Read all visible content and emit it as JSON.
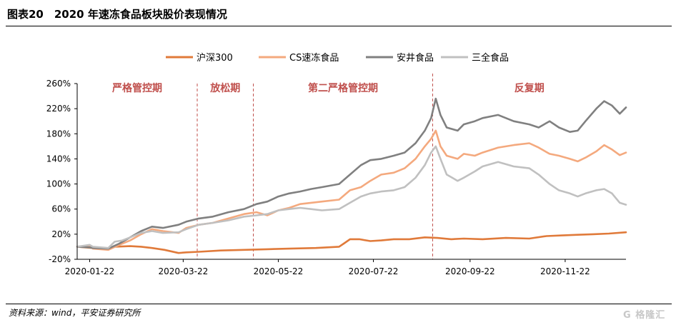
{
  "title": "图表20　2020 年速冻食品板块股价表现情况",
  "source": "资料来源：wind，平安证券研究所",
  "watermark": "G 格隆汇",
  "chart_data": {
    "type": "line",
    "ylim": [
      -20,
      260
    ],
    "yticks": [
      "-20%",
      "20%",
      "60%",
      "100%",
      "140%",
      "180%",
      "220%",
      "260%"
    ],
    "ytick_values": [
      -20,
      20,
      60,
      100,
      140,
      180,
      220,
      260
    ],
    "x_start": "2020-01-14",
    "x_end": "2020-12-31",
    "xticks": [
      "2020-01-22",
      "2020-03-22",
      "2020-05-22",
      "2020-07-22",
      "2020-09-22",
      "2020-11-22"
    ],
    "legend_position": "top",
    "grid": false,
    "phases": [
      {
        "label": "严格管控期",
        "start": "2020-01-14",
        "end": "2020-03-31"
      },
      {
        "label": "放松期",
        "start": "2020-03-31",
        "end": "2020-05-06"
      },
      {
        "label": "第二严格管控期",
        "start": "2020-05-06",
        "end": "2020-08-29"
      },
      {
        "label": "反复期",
        "start": "2020-08-29",
        "end": "2020-12-31"
      }
    ],
    "phase_color": "#c0504d",
    "series": [
      {
        "name": "沪深300",
        "color": "#e07a3a",
        "width": 2.6,
        "points": [
          [
            "2020-01-14",
            0
          ],
          [
            "2020-01-24",
            -2
          ],
          [
            "2020-02-03",
            -4
          ],
          [
            "2020-02-07",
            0
          ],
          [
            "2020-02-17",
            1
          ],
          [
            "2020-02-24",
            0
          ],
          [
            "2020-03-02",
            -2
          ],
          [
            "2020-03-10",
            -5
          ],
          [
            "2020-03-19",
            -10
          ],
          [
            "2020-03-24",
            -9
          ],
          [
            "2020-04-01",
            -8
          ],
          [
            "2020-04-15",
            -6
          ],
          [
            "2020-04-30",
            -5
          ],
          [
            "2020-05-15",
            -4
          ],
          [
            "2020-05-29",
            -3
          ],
          [
            "2020-06-15",
            -2
          ],
          [
            "2020-06-30",
            0
          ],
          [
            "2020-07-03",
            5
          ],
          [
            "2020-07-07",
            12
          ],
          [
            "2020-07-13",
            12
          ],
          [
            "2020-07-20",
            9
          ],
          [
            "2020-07-27",
            10
          ],
          [
            "2020-08-04",
            12
          ],
          [
            "2020-08-14",
            12
          ],
          [
            "2020-08-24",
            15
          ],
          [
            "2020-09-01",
            14
          ],
          [
            "2020-09-10",
            12
          ],
          [
            "2020-09-18",
            13
          ],
          [
            "2020-09-30",
            12
          ],
          [
            "2020-10-15",
            14
          ],
          [
            "2020-10-30",
            13
          ],
          [
            "2020-11-10",
            17
          ],
          [
            "2020-11-20",
            18
          ],
          [
            "2020-11-30",
            19
          ],
          [
            "2020-12-10",
            20
          ],
          [
            "2020-12-20",
            21
          ],
          [
            "2020-12-31",
            23
          ]
        ]
      },
      {
        "name": "CS速冻食品",
        "color": "#f4a97e",
        "width": 2.6,
        "points": [
          [
            "2020-01-14",
            0
          ],
          [
            "2020-01-22",
            2
          ],
          [
            "2020-01-24",
            -3
          ],
          [
            "2020-02-03",
            -5
          ],
          [
            "2020-02-10",
            3
          ],
          [
            "2020-02-17",
            10
          ],
          [
            "2020-02-24",
            20
          ],
          [
            "2020-03-02",
            28
          ],
          [
            "2020-03-09",
            25
          ],
          [
            "2020-03-19",
            22
          ],
          [
            "2020-03-24",
            30
          ],
          [
            "2020-04-01",
            35
          ],
          [
            "2020-04-10",
            38
          ],
          [
            "2020-04-20",
            45
          ],
          [
            "2020-04-30",
            52
          ],
          [
            "2020-05-08",
            55
          ],
          [
            "2020-05-15",
            50
          ],
          [
            "2020-05-22",
            58
          ],
          [
            "2020-05-29",
            62
          ],
          [
            "2020-06-05",
            68
          ],
          [
            "2020-06-12",
            70
          ],
          [
            "2020-06-19",
            72
          ],
          [
            "2020-06-30",
            75
          ],
          [
            "2020-07-07",
            90
          ],
          [
            "2020-07-14",
            95
          ],
          [
            "2020-07-20",
            105
          ],
          [
            "2020-07-27",
            115
          ],
          [
            "2020-08-04",
            118
          ],
          [
            "2020-08-11",
            125
          ],
          [
            "2020-08-18",
            140
          ],
          [
            "2020-08-24",
            160
          ],
          [
            "2020-08-28",
            172
          ],
          [
            "2020-08-31",
            185
          ],
          [
            "2020-09-03",
            160
          ],
          [
            "2020-09-07",
            145
          ],
          [
            "2020-09-14",
            140
          ],
          [
            "2020-09-18",
            148
          ],
          [
            "2020-09-25",
            145
          ],
          [
            "2020-09-30",
            150
          ],
          [
            "2020-10-10",
            158
          ],
          [
            "2020-10-20",
            162
          ],
          [
            "2020-10-30",
            165
          ],
          [
            "2020-11-05",
            158
          ],
          [
            "2020-11-12",
            148
          ],
          [
            "2020-11-18",
            145
          ],
          [
            "2020-11-25",
            140
          ],
          [
            "2020-11-30",
            136
          ],
          [
            "2020-12-05",
            142
          ],
          [
            "2020-12-12",
            152
          ],
          [
            "2020-12-17",
            162
          ],
          [
            "2020-12-22",
            155
          ],
          [
            "2020-12-27",
            146
          ],
          [
            "2020-12-31",
            150
          ]
        ]
      },
      {
        "name": "安井食品",
        "color": "#808080",
        "width": 2.6,
        "points": [
          [
            "2020-01-14",
            0
          ],
          [
            "2020-01-22",
            -1
          ],
          [
            "2020-01-24",
            -2
          ],
          [
            "2020-02-03",
            -3
          ],
          [
            "2020-02-10",
            5
          ],
          [
            "2020-02-17",
            15
          ],
          [
            "2020-02-24",
            25
          ],
          [
            "2020-03-02",
            32
          ],
          [
            "2020-03-09",
            30
          ],
          [
            "2020-03-19",
            35
          ],
          [
            "2020-03-24",
            40
          ],
          [
            "2020-04-01",
            45
          ],
          [
            "2020-04-10",
            48
          ],
          [
            "2020-04-20",
            55
          ],
          [
            "2020-04-30",
            60
          ],
          [
            "2020-05-08",
            68
          ],
          [
            "2020-05-15",
            72
          ],
          [
            "2020-05-22",
            80
          ],
          [
            "2020-05-29",
            85
          ],
          [
            "2020-06-05",
            88
          ],
          [
            "2020-06-12",
            92
          ],
          [
            "2020-06-19",
            95
          ],
          [
            "2020-06-30",
            100
          ],
          [
            "2020-07-07",
            115
          ],
          [
            "2020-07-14",
            130
          ],
          [
            "2020-07-20",
            138
          ],
          [
            "2020-07-27",
            140
          ],
          [
            "2020-08-04",
            145
          ],
          [
            "2020-08-11",
            150
          ],
          [
            "2020-08-18",
            165
          ],
          [
            "2020-08-24",
            185
          ],
          [
            "2020-08-28",
            205
          ],
          [
            "2020-08-31",
            236
          ],
          [
            "2020-09-03",
            210
          ],
          [
            "2020-09-07",
            190
          ],
          [
            "2020-09-14",
            185
          ],
          [
            "2020-09-18",
            195
          ],
          [
            "2020-09-25",
            200
          ],
          [
            "2020-09-30",
            205
          ],
          [
            "2020-10-10",
            210
          ],
          [
            "2020-10-20",
            200
          ],
          [
            "2020-10-30",
            195
          ],
          [
            "2020-11-05",
            190
          ],
          [
            "2020-11-12",
            200
          ],
          [
            "2020-11-18",
            190
          ],
          [
            "2020-11-25",
            183
          ],
          [
            "2020-11-30",
            185
          ],
          [
            "2020-12-05",
            200
          ],
          [
            "2020-12-12",
            220
          ],
          [
            "2020-12-17",
            232
          ],
          [
            "2020-12-22",
            225
          ],
          [
            "2020-12-27",
            212
          ],
          [
            "2020-12-31",
            222
          ]
        ]
      },
      {
        "name": "三全食品",
        "color": "#c0c0c0",
        "width": 2.6,
        "points": [
          [
            "2020-01-14",
            0
          ],
          [
            "2020-01-22",
            3
          ],
          [
            "2020-01-24",
            0
          ],
          [
            "2020-02-03",
            -2
          ],
          [
            "2020-02-07",
            8
          ],
          [
            "2020-02-12",
            10
          ],
          [
            "2020-02-17",
            15
          ],
          [
            "2020-02-24",
            22
          ],
          [
            "2020-03-02",
            25
          ],
          [
            "2020-03-09",
            22
          ],
          [
            "2020-03-19",
            23
          ],
          [
            "2020-03-24",
            28
          ],
          [
            "2020-04-01",
            35
          ],
          [
            "2020-04-10",
            38
          ],
          [
            "2020-04-20",
            42
          ],
          [
            "2020-04-30",
            48
          ],
          [
            "2020-05-08",
            50
          ],
          [
            "2020-05-15",
            52
          ],
          [
            "2020-05-22",
            58
          ],
          [
            "2020-05-29",
            60
          ],
          [
            "2020-06-05",
            62
          ],
          [
            "2020-06-12",
            60
          ],
          [
            "2020-06-19",
            58
          ],
          [
            "2020-06-30",
            60
          ],
          [
            "2020-07-07",
            70
          ],
          [
            "2020-07-14",
            80
          ],
          [
            "2020-07-20",
            85
          ],
          [
            "2020-07-27",
            88
          ],
          [
            "2020-08-04",
            90
          ],
          [
            "2020-08-11",
            95
          ],
          [
            "2020-08-18",
            110
          ],
          [
            "2020-08-24",
            130
          ],
          [
            "2020-08-28",
            150
          ],
          [
            "2020-08-31",
            160
          ],
          [
            "2020-09-03",
            140
          ],
          [
            "2020-09-07",
            115
          ],
          [
            "2020-09-14",
            105
          ],
          [
            "2020-09-18",
            110
          ],
          [
            "2020-09-25",
            120
          ],
          [
            "2020-09-30",
            128
          ],
          [
            "2020-10-10",
            135
          ],
          [
            "2020-10-20",
            128
          ],
          [
            "2020-10-30",
            125
          ],
          [
            "2020-11-05",
            115
          ],
          [
            "2020-11-12",
            100
          ],
          [
            "2020-11-18",
            90
          ],
          [
            "2020-11-25",
            85
          ],
          [
            "2020-11-30",
            80
          ],
          [
            "2020-12-05",
            85
          ],
          [
            "2020-12-12",
            90
          ],
          [
            "2020-12-17",
            92
          ],
          [
            "2020-12-22",
            85
          ],
          [
            "2020-12-27",
            70
          ],
          [
            "2020-12-31",
            67
          ]
        ]
      }
    ]
  }
}
